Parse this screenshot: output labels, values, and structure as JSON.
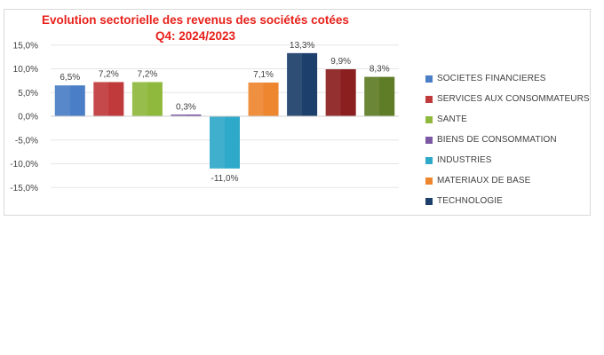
{
  "chart_data": {
    "type": "bar",
    "title": "Evolution sectorielle des revenus des sociétés cotées",
    "subtitle": "Q4: 2024/2023",
    "ylim": [
      -15,
      15
    ],
    "yticks": [
      "15,0%",
      "10,0%",
      "5,0%",
      "0,0%",
      "-5,0%",
      "-10,0%",
      "-15,0%"
    ],
    "ytick_values": [
      15,
      10,
      5,
      0,
      -5,
      -10,
      -15
    ],
    "grid": true,
    "legend_position": "right",
    "series": [
      {
        "name": "SOCIETES FINANCIERES",
        "value": 6.5,
        "label": "6,5%",
        "color": "#4a7ec6",
        "in_legend": true
      },
      {
        "name": "SERVICES AUX CONSOMMATEURS",
        "value": 7.2,
        "label": "7,2%",
        "color": "#c0393b",
        "in_legend": true
      },
      {
        "name": "SANTE",
        "value": 7.2,
        "label": "7,2%",
        "color": "#8fb93d",
        "in_legend": true
      },
      {
        "name": "BIENS DE CONSOMMATION",
        "value": 0.3,
        "label": "0,3%",
        "color": "#7b58a3",
        "in_legend": true
      },
      {
        "name": "INDUSTRIES",
        "value": -11.0,
        "label": "-11,0%",
        "color": "#2fa9c9",
        "in_legend": true
      },
      {
        "name": "MATERIAUX DE BASE",
        "value": 7.1,
        "label": "7,1%",
        "color": "#ee8630",
        "in_legend": true
      },
      {
        "name": "TECHNOLOGIE",
        "value": 13.3,
        "label": "13,3%",
        "color": "#1d3f6b",
        "in_legend": true
      },
      {
        "name": "",
        "value": 9.9,
        "label": "9,9%",
        "color": "#8b1f1f",
        "in_legend": false
      },
      {
        "name": "",
        "value": 8.3,
        "label": "8,3%",
        "color": "#5f7c27",
        "in_legend": false
      }
    ]
  }
}
